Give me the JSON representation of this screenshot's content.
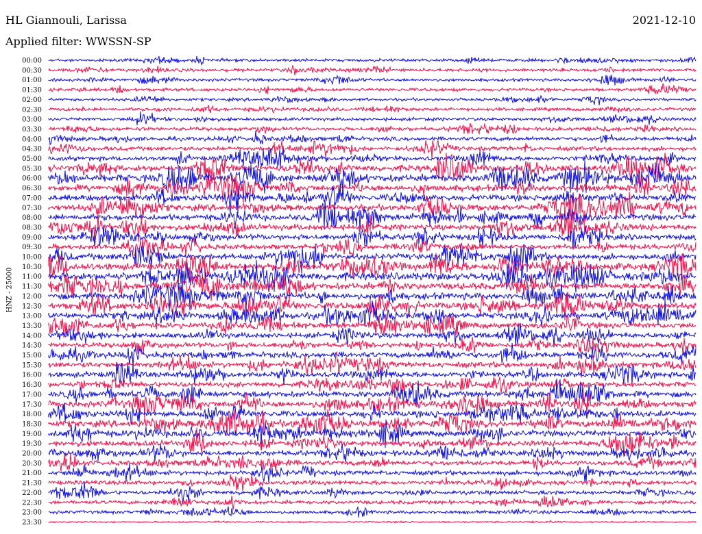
{
  "header": {
    "station": "HL Giannouli, Larissa",
    "date": "2021-12-10",
    "filter": "Applied filter: WWSSN-SP"
  },
  "chart_data": {
    "type": "line",
    "title": "HL Giannouli, Larissa",
    "subtitle": "Applied filter: WWSSN-SP",
    "ylabel": "HNZ - 25000",
    "xlabel": "",
    "grid": false,
    "colors": [
      "#1010e0",
      "#f0104a"
    ],
    "rows": [
      {
        "time": "00:00",
        "level": 0.25
      },
      {
        "time": "00:30",
        "level": 0.3
      },
      {
        "time": "01:00",
        "level": 0.25
      },
      {
        "time": "01:30",
        "level": 0.3
      },
      {
        "time": "02:00",
        "level": 0.25
      },
      {
        "time": "02:30",
        "level": 0.3
      },
      {
        "time": "03:00",
        "level": 0.3
      },
      {
        "time": "03:30",
        "level": 0.35
      },
      {
        "time": "04:00",
        "level": 0.4
      },
      {
        "time": "04:30",
        "level": 0.45
      },
      {
        "time": "05:00",
        "level": 0.5
      },
      {
        "time": "05:30",
        "level": 0.75
      },
      {
        "time": "06:00",
        "level": 0.9
      },
      {
        "time": "06:30",
        "level": 0.75
      },
      {
        "time": "07:00",
        "level": 0.7
      },
      {
        "time": "07:30",
        "level": 0.75
      },
      {
        "time": "08:00",
        "level": 0.7
      },
      {
        "time": "08:30",
        "level": 0.7
      },
      {
        "time": "09:00",
        "level": 0.65
      },
      {
        "time": "09:30",
        "level": 0.6
      },
      {
        "time": "10:00",
        "level": 0.7
      },
      {
        "time": "10:30",
        "level": 0.9
      },
      {
        "time": "11:00",
        "level": 0.95
      },
      {
        "time": "11:30",
        "level": 0.8
      },
      {
        "time": "12:00",
        "level": 0.8
      },
      {
        "time": "12:30",
        "level": 0.8
      },
      {
        "time": "13:00",
        "level": 0.75
      },
      {
        "time": "13:30",
        "level": 0.7
      },
      {
        "time": "14:00",
        "level": 0.6
      },
      {
        "time": "14:30",
        "level": 0.55
      },
      {
        "time": "15:00",
        "level": 0.65
      },
      {
        "time": "15:30",
        "level": 0.65
      },
      {
        "time": "16:00",
        "level": 0.65
      },
      {
        "time": "16:30",
        "level": 0.6
      },
      {
        "time": "17:00",
        "level": 0.7
      },
      {
        "time": "17:30",
        "level": 0.75
      },
      {
        "time": "18:00",
        "level": 0.7
      },
      {
        "time": "18:30",
        "level": 0.75
      },
      {
        "time": "19:00",
        "level": 0.7
      },
      {
        "time": "19:30",
        "level": 0.65
      },
      {
        "time": "20:00",
        "level": 0.6
      },
      {
        "time": "20:30",
        "level": 0.55
      },
      {
        "time": "21:00",
        "level": 0.5
      },
      {
        "time": "21:30",
        "level": 0.45
      },
      {
        "time": "22:00",
        "level": 0.4
      },
      {
        "time": "22:30",
        "level": 0.35
      },
      {
        "time": "23:00",
        "level": 0.3
      },
      {
        "time": "23:30",
        "level": 0.05
      }
    ]
  }
}
